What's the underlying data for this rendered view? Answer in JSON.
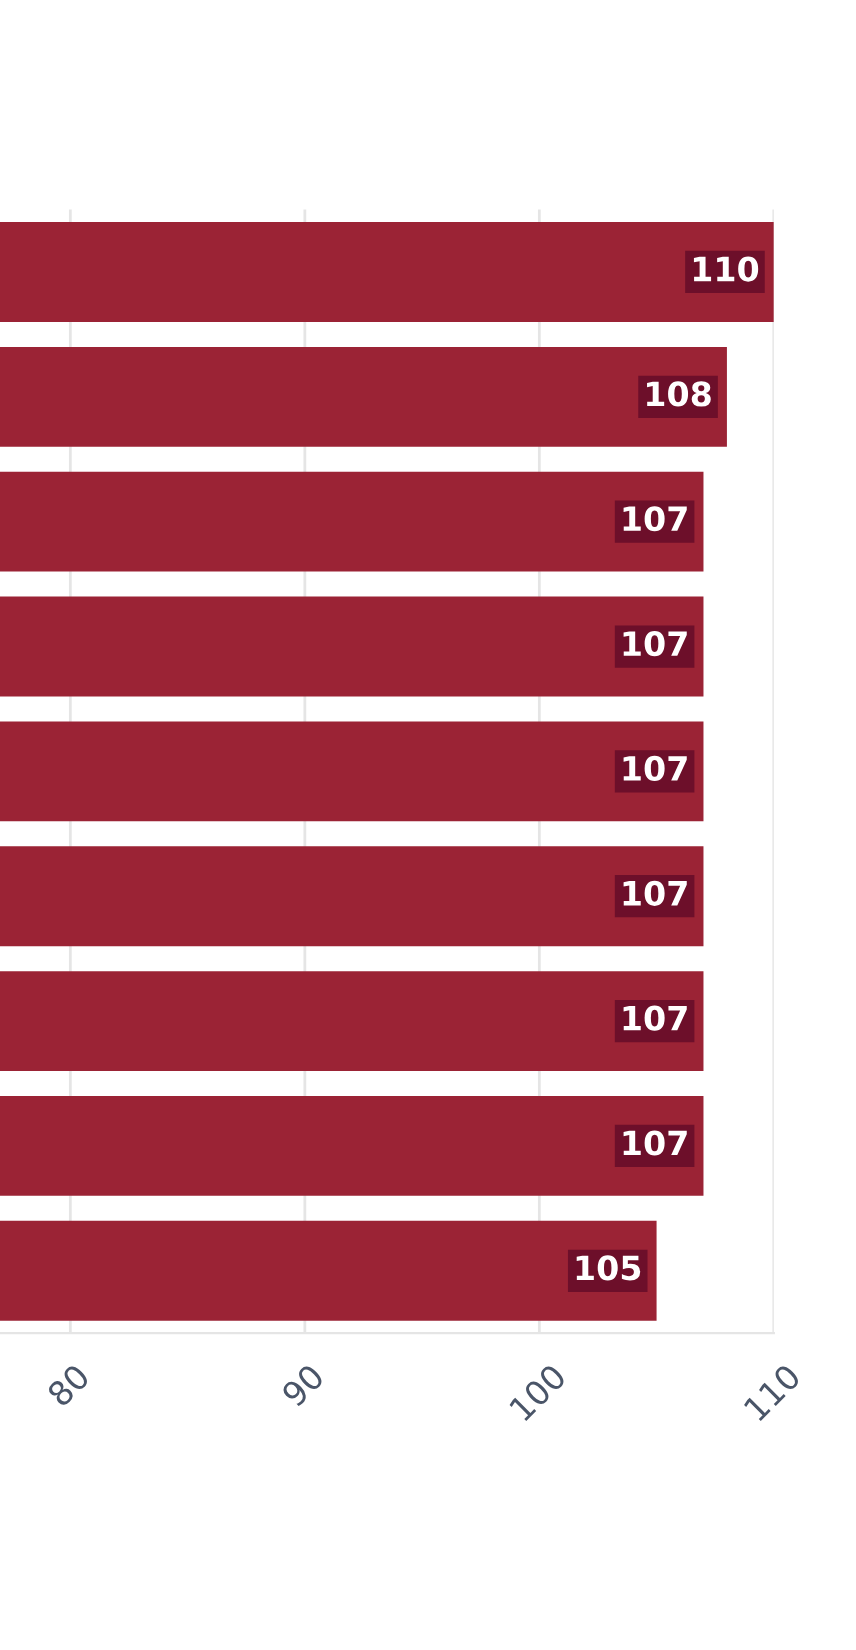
{
  "chart_data": {
    "type": "bar",
    "orientation": "horizontal",
    "categories": [
      null,
      null,
      null,
      null,
      null,
      null,
      null,
      null,
      null
    ],
    "values": [
      110,
      108,
      107,
      107,
      107,
      107,
      107,
      107,
      105
    ],
    "color": "#9b2335",
    "xlim": [
      77,
      110
    ],
    "xticks": [
      80,
      90,
      100,
      110
    ],
    "grid": "x",
    "data_labels": true
  }
}
